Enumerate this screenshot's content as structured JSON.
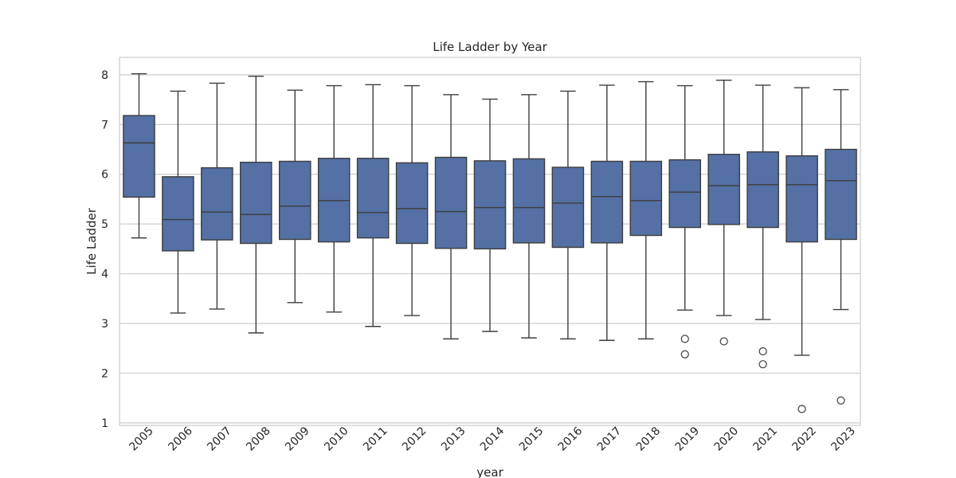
{
  "chart_data": {
    "type": "box",
    "title": "Life Ladder by Year",
    "xlabel": "year",
    "ylabel": "Life Ladder",
    "ylim": [
      0.95,
      8.35
    ],
    "yticks": [
      1,
      2,
      3,
      4,
      5,
      6,
      7,
      8
    ],
    "grid": true,
    "box_color": "#5470a5",
    "line_color": "#3d3d3d",
    "categories": [
      "2005",
      "2006",
      "2007",
      "2008",
      "2009",
      "2010",
      "2011",
      "2012",
      "2013",
      "2014",
      "2015",
      "2016",
      "2017",
      "2018",
      "2019",
      "2020",
      "2021",
      "2022",
      "2023"
    ],
    "boxes": [
      {
        "whislo": 4.72,
        "q1": 5.54,
        "med": 6.63,
        "q3": 7.18,
        "whishi": 8.02,
        "fliers": []
      },
      {
        "whislo": 3.21,
        "q1": 4.46,
        "med": 5.09,
        "q3": 5.95,
        "whishi": 7.67,
        "fliers": []
      },
      {
        "whislo": 3.29,
        "q1": 4.68,
        "med": 5.24,
        "q3": 6.13,
        "whishi": 7.83,
        "fliers": []
      },
      {
        "whislo": 2.81,
        "q1": 4.61,
        "med": 5.19,
        "q3": 6.24,
        "whishi": 7.97,
        "fliers": []
      },
      {
        "whislo": 3.42,
        "q1": 4.69,
        "med": 5.36,
        "q3": 6.26,
        "whishi": 7.69,
        "fliers": []
      },
      {
        "whislo": 3.23,
        "q1": 4.64,
        "med": 5.47,
        "q3": 6.32,
        "whishi": 7.78,
        "fliers": []
      },
      {
        "whislo": 2.94,
        "q1": 4.72,
        "med": 5.23,
        "q3": 6.32,
        "whishi": 7.8,
        "fliers": []
      },
      {
        "whislo": 3.16,
        "q1": 4.61,
        "med": 5.31,
        "q3": 6.23,
        "whishi": 7.78,
        "fliers": []
      },
      {
        "whislo": 2.69,
        "q1": 4.51,
        "med": 5.25,
        "q3": 6.34,
        "whishi": 7.6,
        "fliers": []
      },
      {
        "whislo": 2.84,
        "q1": 4.5,
        "med": 5.33,
        "q3": 6.27,
        "whishi": 7.51,
        "fliers": []
      },
      {
        "whislo": 2.71,
        "q1": 4.62,
        "med": 5.33,
        "q3": 6.31,
        "whishi": 7.6,
        "fliers": []
      },
      {
        "whislo": 2.69,
        "q1": 4.53,
        "med": 5.42,
        "q3": 6.14,
        "whishi": 7.67,
        "fliers": []
      },
      {
        "whislo": 2.66,
        "q1": 4.62,
        "med": 5.55,
        "q3": 6.26,
        "whishi": 7.79,
        "fliers": []
      },
      {
        "whislo": 2.69,
        "q1": 4.77,
        "med": 5.47,
        "q3": 6.26,
        "whishi": 7.86,
        "fliers": []
      },
      {
        "whislo": 3.27,
        "q1": 4.93,
        "med": 5.64,
        "q3": 6.29,
        "whishi": 7.78,
        "fliers": [
          2.69,
          2.38
        ]
      },
      {
        "whislo": 3.16,
        "q1": 4.99,
        "med": 5.77,
        "q3": 6.4,
        "whishi": 7.89,
        "fliers": [
          2.64
        ]
      },
      {
        "whislo": 3.08,
        "q1": 4.93,
        "med": 5.79,
        "q3": 6.45,
        "whishi": 7.79,
        "fliers": [
          2.44,
          2.18
        ]
      },
      {
        "whislo": 2.36,
        "q1": 4.64,
        "med": 5.79,
        "q3": 6.37,
        "whishi": 7.74,
        "fliers": [
          1.28
        ]
      },
      {
        "whislo": 3.28,
        "q1": 4.69,
        "med": 5.87,
        "q3": 6.5,
        "whishi": 7.7,
        "fliers": [
          1.45
        ]
      }
    ]
  }
}
